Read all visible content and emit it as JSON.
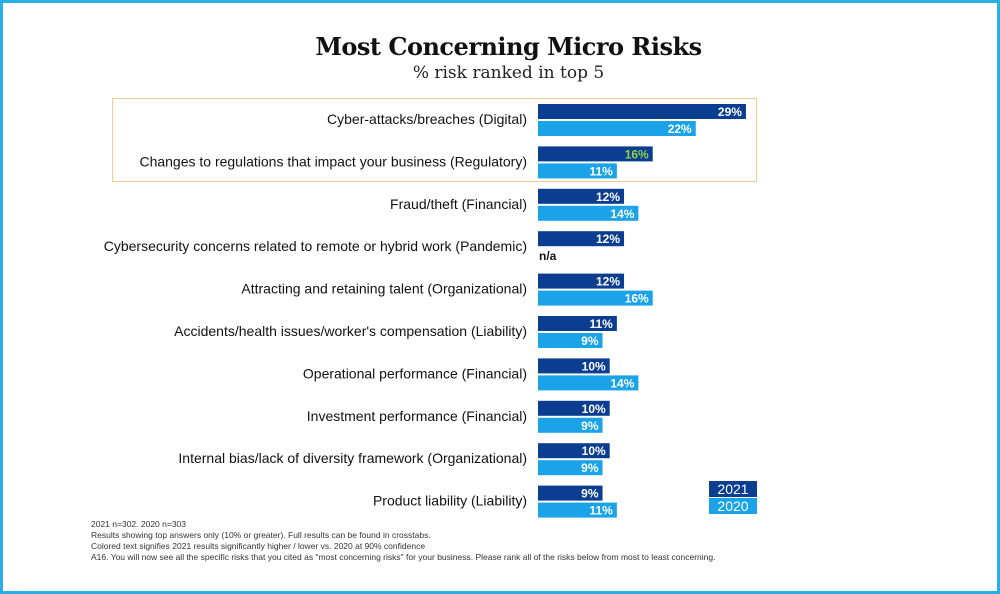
{
  "chart_data": {
    "type": "bar",
    "orientation": "horizontal",
    "title": "Most Concerning Micro Risks",
    "subtitle": "% risk ranked in top 5",
    "categories": [
      "Cyber-attacks/breaches (Digital)",
      "Changes to regulations that impact your business (Regulatory)",
      "Fraud/theft (Financial)",
      "Cybersecurity concerns related to remote or hybrid work (Pandemic)",
      "Attracting and retaining talent (Organizational)",
      "Accidents/health issues/worker's compensation (Liability)",
      "Operational performance (Financial)",
      "Investment performance (Financial)",
      "Internal bias/lack of diversity framework (Organizational)",
      "Product liability (Liability)"
    ],
    "series": [
      {
        "name": "2021",
        "color": "#0b3d91",
        "values": [
          29,
          16,
          12,
          12,
          12,
          11,
          10,
          10,
          10,
          9
        ],
        "labels": [
          "29%",
          "16%",
          "12%",
          "12%",
          "12%",
          "11%",
          "10%",
          "10%",
          "10%",
          "9%"
        ],
        "label_colors": [
          "#ffffff",
          "#8fd14f",
          "#ffffff",
          "#ffffff",
          "#ffffff",
          "#ffffff",
          "#ffffff",
          "#ffffff",
          "#ffffff",
          "#ffffff"
        ]
      },
      {
        "name": "2020",
        "color": "#1aa3e8",
        "values": [
          22,
          11,
          14,
          null,
          16,
          9,
          14,
          9,
          9,
          11
        ],
        "labels": [
          "22%",
          "11%",
          "14%",
          "n/a",
          "16%",
          "9%",
          "14%",
          "9%",
          "9%",
          "11%"
        ],
        "label_colors": [
          "#ffffff",
          "#ffffff",
          "#ffffff",
          "#111111",
          "#ffffff",
          "#ffffff",
          "#ffffff",
          "#ffffff",
          "#ffffff",
          "#ffffff"
        ]
      }
    ],
    "highlighted_categories": [
      0,
      1
    ],
    "highlight_color": "#f7c98b",
    "legend_position": "bottom-right",
    "grid": false
  },
  "legend": {
    "label_2021": "2021",
    "label_2020": "2020"
  },
  "notes": [
    "2021 n=302. 2020 n=303",
    "Results showing top answers only (10% or greater). Full results can be found in crosstabs.",
    "Colored text signifies 2021 results significantly higher / lower vs. 2020 at 90% confidence",
    "A16. You will now see all the specific risks that you cited as \"most concerning risks\" for your business. Please rank all of the risks below from most to least concerning."
  ]
}
